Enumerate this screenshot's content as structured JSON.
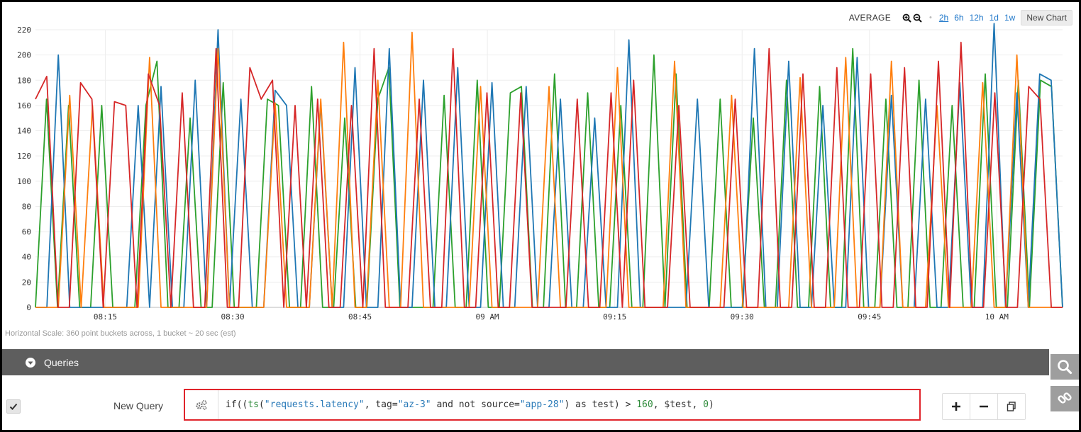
{
  "toolbar": {
    "aggregation_label": "AVERAGE",
    "ranges": [
      "2h",
      "6h",
      "12h",
      "1d",
      "1w"
    ],
    "active_range": "2h",
    "new_chart_label": "New Chart"
  },
  "chart_data": {
    "type": "line",
    "xlabel": "",
    "ylabel": "",
    "ylim": [
      0,
      220
    ],
    "yticks": [
      0,
      20,
      40,
      60,
      80,
      100,
      120,
      140,
      160,
      180,
      200,
      220
    ],
    "x_ticks": [
      {
        "label": "08:15",
        "t": 0.068
      },
      {
        "label": "08:30",
        "t": 0.192
      },
      {
        "label": "08:45",
        "t": 0.316
      },
      {
        "label": "09 AM",
        "t": 0.44
      },
      {
        "label": "09:15",
        "t": 0.564
      },
      {
        "label": "09:30",
        "t": 0.688
      },
      {
        "label": "09:45",
        "t": 0.812
      },
      {
        "label": "10 AM",
        "t": 0.936
      }
    ],
    "grid": true,
    "series": [
      {
        "color": "#2ca02c",
        "values": [
          0,
          165,
          0,
          160,
          0,
          0,
          160,
          0,
          0,
          0,
          160,
          195,
          0,
          0,
          150,
          0,
          0,
          178,
          0,
          0,
          0,
          165,
          160,
          0,
          0,
          175,
          0,
          0,
          150,
          0,
          0,
          165,
          190,
          0,
          0,
          0,
          0,
          168,
          0,
          0,
          180,
          0,
          0,
          170,
          175,
          0,
          0,
          185,
          0,
          0,
          170,
          0,
          0,
          160,
          0,
          0,
          200,
          0,
          185,
          0,
          0,
          0,
          165,
          0,
          0,
          150,
          0,
          0,
          180,
          0,
          0,
          175,
          0,
          0,
          205,
          0,
          0,
          165,
          0,
          0,
          180,
          0,
          0,
          160,
          0,
          0,
          185,
          0,
          0,
          180,
          0,
          180,
          175,
          0
        ]
      },
      {
        "color": "#1f77b4",
        "values": [
          0,
          0,
          200,
          0,
          0,
          0,
          0,
          0,
          0,
          160,
          0,
          175,
          0,
          0,
          180,
          0,
          220,
          0,
          165,
          0,
          0,
          172,
          160,
          0,
          0,
          162,
          0,
          0,
          190,
          0,
          0,
          205,
          0,
          0,
          180,
          0,
          0,
          190,
          0,
          0,
          178,
          0,
          0,
          175,
          0,
          0,
          165,
          0,
          0,
          150,
          0,
          0,
          212,
          0,
          0,
          0,
          0,
          0,
          165,
          0,
          0,
          0,
          0,
          205,
          0,
          0,
          195,
          0,
          0,
          160,
          0,
          0,
          198,
          0,
          0,
          168,
          0,
          0,
          165,
          0,
          0,
          178,
          0,
          0,
          225,
          0,
          170,
          0,
          185,
          180,
          0
        ]
      },
      {
        "color": "#ff7f0e",
        "values": [
          0,
          0,
          0,
          168,
          0,
          160,
          0,
          0,
          0,
          0,
          198,
          0,
          0,
          0,
          0,
          0,
          205,
          0,
          0,
          0,
          0,
          162,
          0,
          0,
          0,
          165,
          0,
          210,
          0,
          0,
          180,
          0,
          0,
          218,
          0,
          0,
          0,
          0,
          0,
          175,
          0,
          0,
          0,
          0,
          0,
          175,
          0,
          0,
          0,
          0,
          0,
          190,
          0,
          0,
          0,
          0,
          195,
          0,
          0,
          0,
          0,
          168,
          0,
          0,
          0,
          0,
          0,
          182,
          0,
          0,
          0,
          198,
          0,
          0,
          0,
          195,
          0,
          0,
          0,
          160,
          0,
          0,
          0,
          178,
          0,
          0,
          200,
          0,
          0,
          0,
          0
        ]
      },
      {
        "color": "#d62728",
        "values": [
          165,
          183,
          0,
          0,
          178,
          165,
          0,
          163,
          160,
          0,
          185,
          160,
          0,
          170,
          0,
          0,
          205,
          0,
          0,
          190,
          165,
          180,
          0,
          160,
          0,
          165,
          0,
          0,
          160,
          0,
          205,
          0,
          0,
          0,
          165,
          0,
          0,
          205,
          0,
          0,
          170,
          0,
          0,
          170,
          0,
          0,
          0,
          0,
          165,
          0,
          0,
          170,
          0,
          180,
          0,
          0,
          0,
          160,
          0,
          0,
          0,
          0,
          165,
          0,
          0,
          205,
          0,
          0,
          185,
          0,
          0,
          190,
          0,
          0,
          185,
          0,
          0,
          190,
          0,
          0,
          195,
          0,
          210,
          0,
          0,
          170,
          0,
          0,
          175,
          165,
          0,
          0
        ]
      }
    ]
  },
  "scale_note": "Horizontal Scale: 360 point buckets across, 1 bucket ~ 20 sec (est)",
  "queries": {
    "header_label": "Queries",
    "rows": [
      {
        "name": "New Query",
        "expression": "if((ts(\"requests.latency\", tag=\"az-3\" and not source=\"app-28\") as test) > 160, $test, 0)",
        "expr_parts": {
          "p1": "if((",
          "p2": "ts",
          "p3": "(",
          "p4": "\"requests.latency\"",
          "p5": ", tag=",
          "p6": "\"az-3\"",
          "p7": " and not source=",
          "p8": "\"app-28\"",
          "p9": ") as test) > ",
          "p10": "160",
          "p11": ", $test, ",
          "p12": "0",
          "p13": ")"
        }
      }
    ]
  }
}
